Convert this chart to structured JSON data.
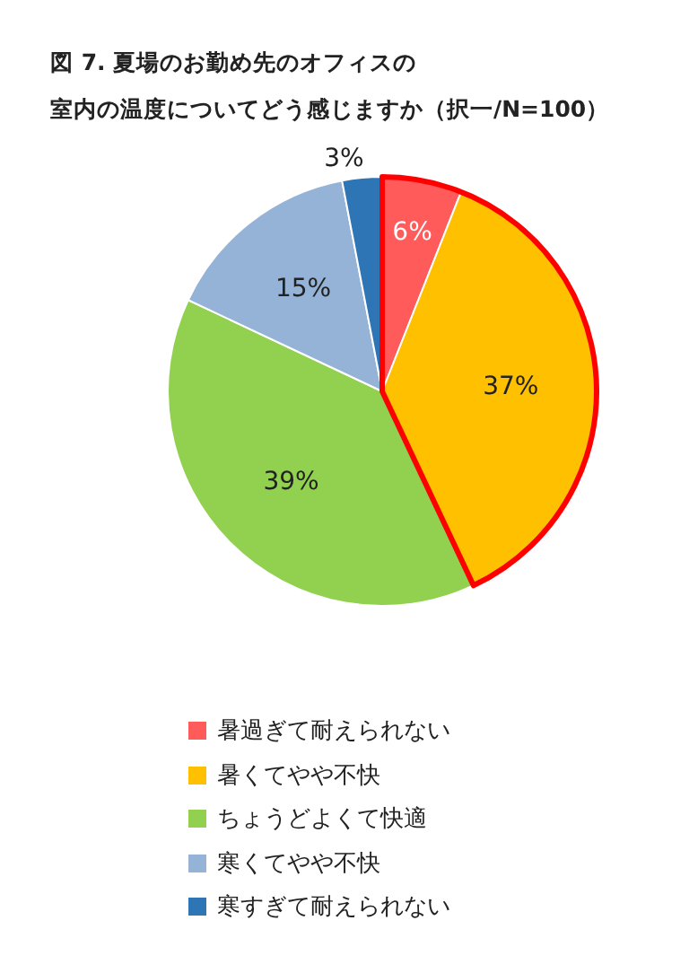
{
  "chart_data": {
    "type": "pie",
    "title": "図 7.  夏場のお勤め先のオフィスの",
    "subtitle": "室内の温度についてどう感じますか（択一/N=100）",
    "categories": [
      "暑過ぎて耐えられない",
      "暑くてやや不快",
      "ちょうどよくて快適",
      "寒くてやや不快",
      "寒すぎて耐えられない"
    ],
    "values": [
      6,
      37,
      39,
      15,
      3
    ],
    "colors": [
      "#ff5b5b",
      "#ffc000",
      "#92d050",
      "#95b3d7",
      "#2e75b6"
    ],
    "value_labels": [
      "6%",
      "37%",
      "39%",
      "15%",
      "3%"
    ],
    "legend": "bottom"
  }
}
